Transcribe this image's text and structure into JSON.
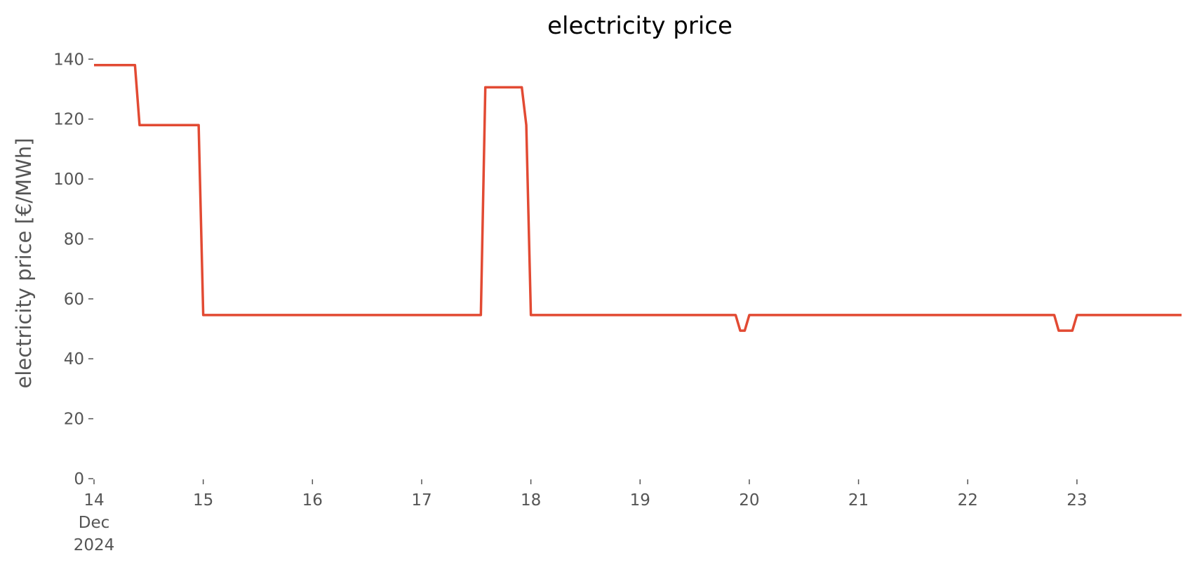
{
  "chart_data": {
    "type": "line",
    "title": "electricity price",
    "y_label": "electricity price [€/MWh]",
    "x": [
      14,
      14.375,
      14.417,
      14.958,
      15,
      17.542,
      17.583,
      17.917,
      17.958,
      18,
      19.875,
      19.917,
      19.958,
      20,
      22.792,
      22.833,
      22.958,
      23,
      23.958
    ],
    "series": [
      {
        "name": "electricity price",
        "color": "#e24a33",
        "values": [
          138,
          138,
          118,
          118,
          54.6,
          54.6,
          130.6,
          130.6,
          118,
          54.6,
          54.6,
          49.4,
          49.4,
          54.6,
          54.6,
          49.4,
          49.4,
          54.6,
          54.6
        ]
      }
    ],
    "xlim": [
      14,
      23.958
    ],
    "xticks": [
      {
        "value": 14,
        "label": "14\nDec\n2024"
      },
      15,
      16,
      17,
      18,
      19,
      20,
      21,
      22,
      23
    ],
    "ylim": [
      0,
      141
    ],
    "yticks": [
      0,
      20,
      40,
      60,
      80,
      100,
      120,
      140
    ]
  }
}
